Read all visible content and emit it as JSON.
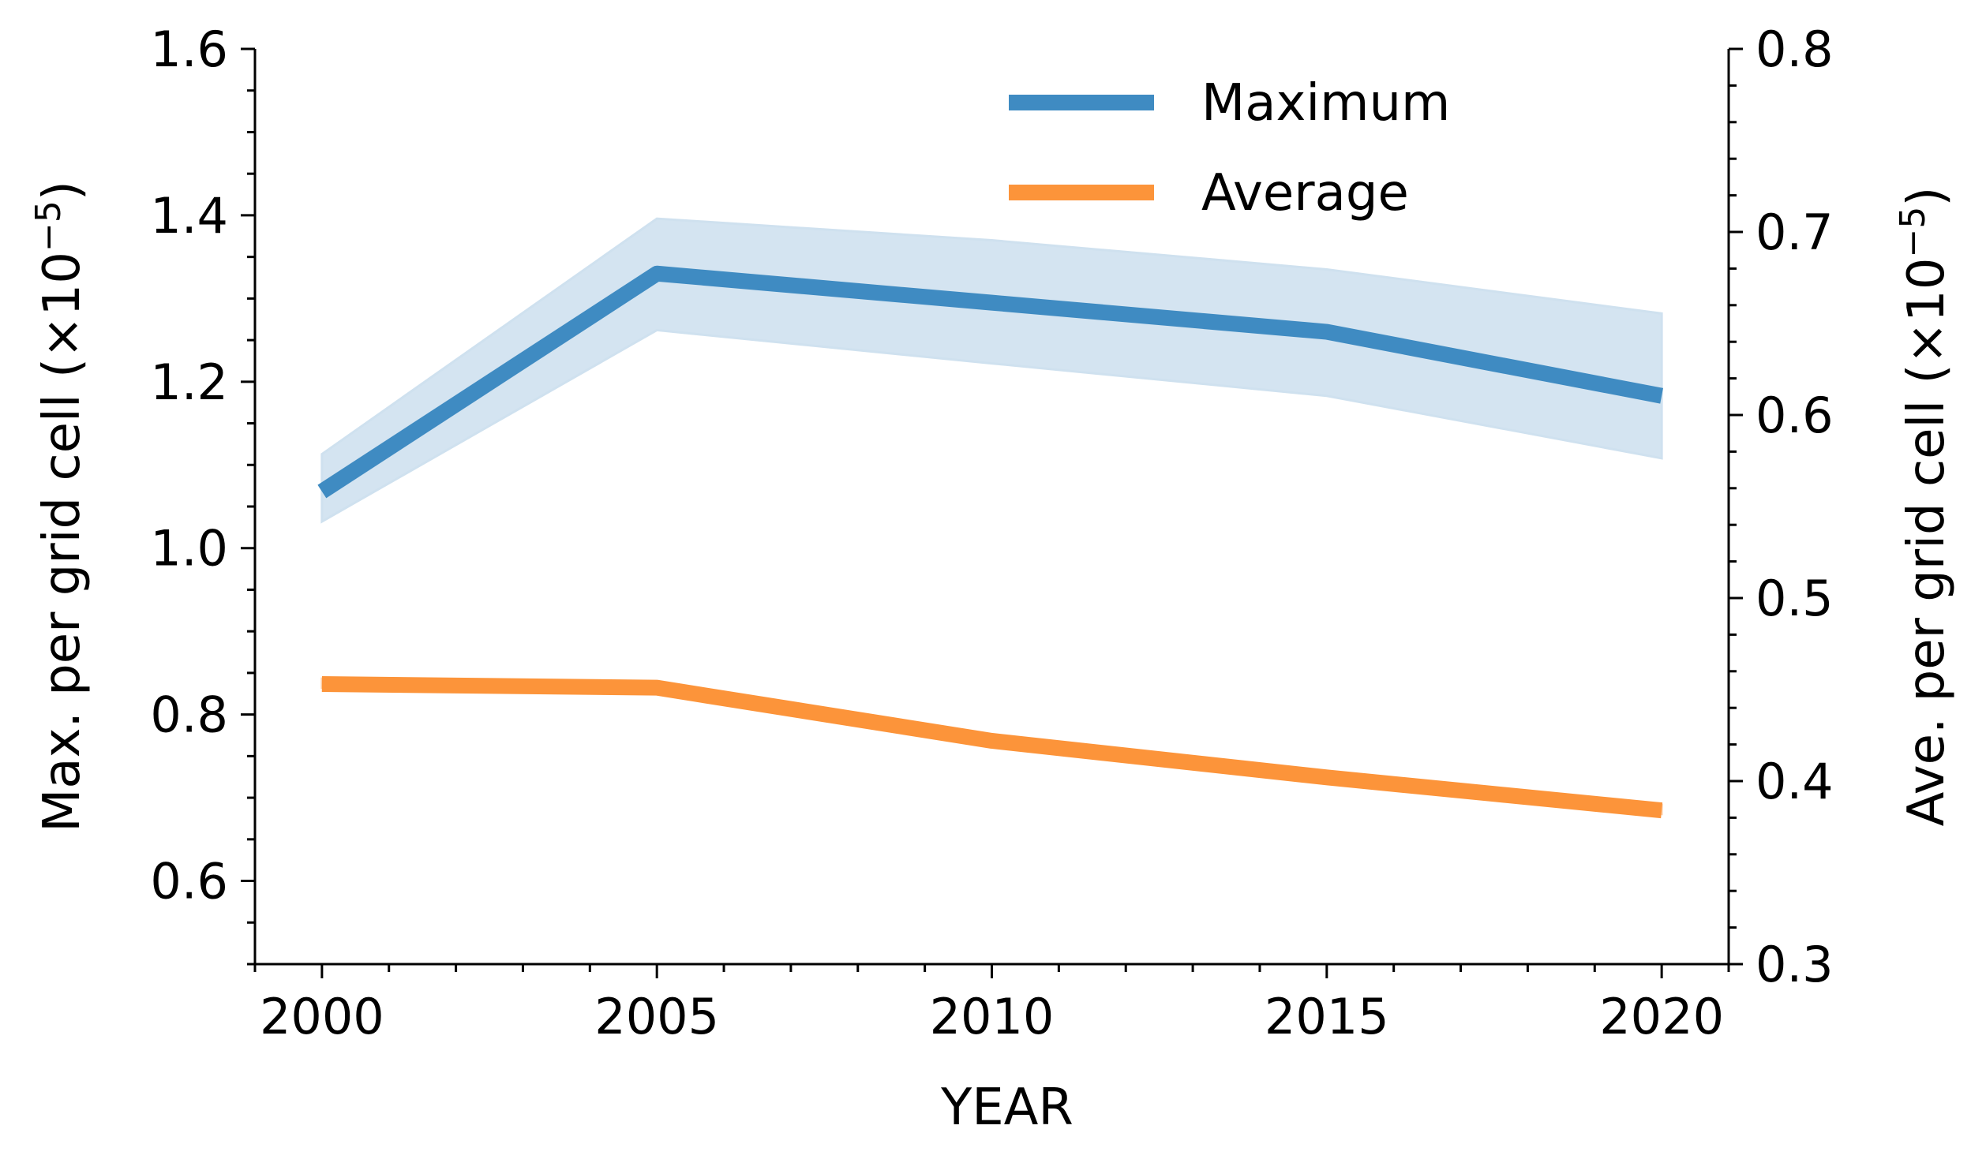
{
  "chart_data": {
    "type": "line",
    "title": "",
    "xlabel": "YEAR",
    "ylabel_left": "Max. per grid cell (×10",
    "ylabel_left_exp": "−5",
    "ylabel_left_close": ")",
    "ylabel_right": "Ave. per grid cell (×10",
    "ylabel_right_exp": "−5",
    "ylabel_right_close": ")",
    "x": [
      2000,
      2005,
      2010,
      2015,
      2020
    ],
    "xlim": [
      1999,
      2021
    ],
    "xticks": [
      2000,
      2005,
      2010,
      2015,
      2020
    ],
    "xtick_labels": [
      "2000",
      "2005",
      "2010",
      "2015",
      "2020"
    ],
    "ylim_left": [
      0.5,
      1.6
    ],
    "yticks_left": [
      0.6,
      0.8,
      1.0,
      1.2,
      1.4,
      1.6
    ],
    "ytick_labels_left": [
      "0.6",
      "0.8",
      "1.0",
      "1.2",
      "1.4",
      "1.6"
    ],
    "ylim_right": [
      0.3,
      0.8
    ],
    "yticks_right": [
      0.3,
      0.4,
      0.5,
      0.6,
      0.7,
      0.8
    ],
    "ytick_labels_right": [
      "0.3",
      "0.4",
      "0.5",
      "0.6",
      "0.7",
      "0.8"
    ],
    "grid": false,
    "legend_position": "top-center",
    "series": [
      {
        "name": "Maximum",
        "axis": "left",
        "color": "#3f8bc2",
        "band_color": "#cfe1ef",
        "values": [
          1.068,
          1.33,
          1.295,
          1.26,
          1.183
        ],
        "lower": [
          1.032,
          1.262,
          1.222,
          1.183,
          1.108
        ],
        "upper": [
          1.113,
          1.396,
          1.37,
          1.335,
          1.282
        ]
      },
      {
        "name": "Average",
        "axis": "right",
        "color": "#fc943a",
        "band_color": "#fdd3b0",
        "values": [
          0.453,
          0.451,
          0.422,
          0.402,
          0.384
        ],
        "lower": [
          0.451,
          0.449,
          0.42,
          0.4,
          0.382
        ],
        "upper": [
          0.456,
          0.454,
          0.425,
          0.405,
          0.387
        ]
      }
    ]
  }
}
